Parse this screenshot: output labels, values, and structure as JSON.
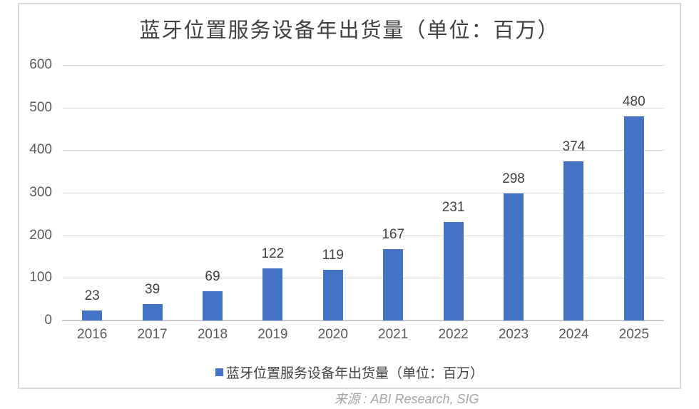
{
  "chart_data": {
    "type": "bar",
    "title": "蓝牙位置服务设备年出货量（单位：百万）",
    "categories": [
      "2016",
      "2017",
      "2018",
      "2019",
      "2020",
      "2021",
      "2022",
      "2023",
      "2024",
      "2025"
    ],
    "values": [
      23,
      39,
      69,
      122,
      119,
      167,
      231,
      298,
      374,
      480
    ],
    "xlabel": "",
    "ylabel": "",
    "ylim": [
      0,
      600
    ],
    "yticks": [
      0,
      100,
      200,
      300,
      400,
      500,
      600
    ],
    "grid": true,
    "bar_color": "#4472C4",
    "legend": {
      "label": "蓝牙位置服务设备年出货量（单位：百万）",
      "position": "bottom",
      "marker_color": "#4472C4",
      "marker_icon": "square-icon"
    },
    "source": "来源 : ABI Research, SIG"
  },
  "colors": {
    "bar": "#4472C4",
    "title_text": "#404040",
    "data_label_text": "#404040",
    "tick_text": "#595959",
    "gridline": "#D9D9D9",
    "axis_line": "#C9C9C9",
    "frame_border": "#D9D9D9",
    "source_text": "#A6A6A6",
    "background": "#FFFFFF"
  }
}
